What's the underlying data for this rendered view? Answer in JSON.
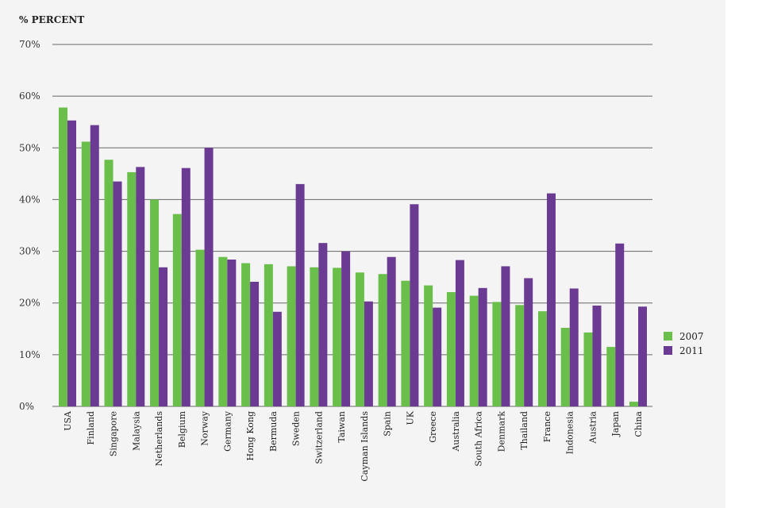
{
  "chart_data": {
    "type": "bar",
    "ylabel": "% PERCENT",
    "ylim": [
      0,
      70
    ],
    "yticks": [
      "0%",
      "10%",
      "20%",
      "30%",
      "40%",
      "50%",
      "60%",
      "70%"
    ],
    "grid": true,
    "legend_position": "right",
    "categories": [
      "USA",
      "Finland",
      "Singapore",
      "Malaysia",
      "Netherlands",
      "Belgium",
      "Norway",
      "Germany",
      "Hong Kong",
      "Bermuda",
      "Sweden",
      "Switzerland",
      "Taiwan",
      "Cayman Islands",
      "Spain",
      "UK",
      "Greece",
      "Australia",
      "South Africa",
      "Denmark",
      "Thailand",
      "France",
      "Indonesia",
      "Austria",
      "Japan",
      "China"
    ],
    "series": [
      {
        "name": "2007",
        "color": "#6abf4b",
        "values": [
          57.8,
          51.2,
          47.7,
          45.3,
          40.0,
          37.2,
          30.3,
          28.9,
          27.7,
          27.5,
          27.1,
          26.9,
          26.8,
          25.9,
          25.6,
          24.3,
          23.4,
          22.1,
          21.4,
          20.2,
          19.6,
          18.4,
          15.2,
          14.3,
          11.5,
          0.9
        ]
      },
      {
        "name": "2011",
        "color": "#6b3a93",
        "values": [
          55.3,
          54.4,
          43.5,
          46.3,
          26.9,
          46.1,
          50.0,
          28.4,
          24.1,
          18.3,
          43.0,
          31.6,
          30.0,
          20.3,
          28.9,
          39.1,
          19.1,
          28.3,
          22.9,
          27.1,
          24.8,
          41.2,
          22.8,
          19.5,
          31.5,
          19.3
        ]
      }
    ]
  }
}
